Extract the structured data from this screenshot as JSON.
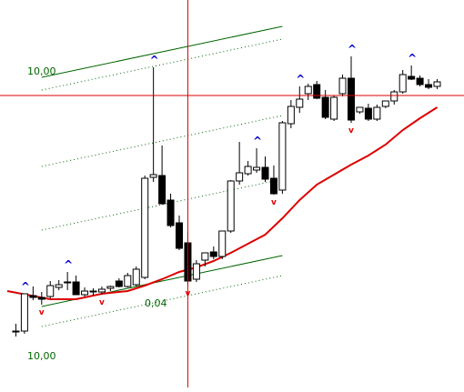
{
  "chart_data": {
    "type": "candlestick",
    "title": "",
    "xlabel": "",
    "ylabel": "",
    "up_color": "#ffffff",
    "down_color": "#000000",
    "candle_outline": "#000000",
    "ma_color": "#dd0000",
    "crosshair_color": "#dd0000",
    "channel_color": "#006600",
    "fractal_up_color": "#0000cc",
    "fractal_down_color": "#dd0000",
    "fractal_up_symbol": "^",
    "fractal_down_symbol": "v",
    "annotations": [
      {
        "text": "10,00"
      },
      {
        "text": "0,04"
      },
      {
        "text": "10,00"
      }
    ],
    "candles": [
      {
        "x": 1,
        "open": 31,
        "high": 39,
        "low": 25,
        "close": 31
      },
      {
        "x": 2,
        "open": 31,
        "high": 72,
        "low": 28,
        "close": 72
      },
      {
        "x": 3,
        "open": 70,
        "high": 80,
        "low": 65,
        "close": 68
      },
      {
        "x": 4,
        "open": 68,
        "high": 74,
        "low": 60,
        "close": 66
      },
      {
        "x": 5,
        "open": 69,
        "high": 86,
        "low": 67,
        "close": 81
      },
      {
        "x": 6,
        "open": 79,
        "high": 87,
        "low": 76,
        "close": 82
      },
      {
        "x": 7,
        "open": 85,
        "high": 96,
        "low": 76,
        "close": 84
      },
      {
        "x": 8,
        "open": 85,
        "high": 92,
        "low": 72,
        "close": 71
      },
      {
        "x": 9,
        "open": 71,
        "high": 79,
        "low": 69,
        "close": 75
      },
      {
        "x": 10,
        "open": 74,
        "high": 78,
        "low": 70,
        "close": 75
      },
      {
        "x": 11,
        "open": 74,
        "high": 80,
        "low": 71,
        "close": 77
      },
      {
        "x": 12,
        "open": 78,
        "high": 81,
        "low": 75,
        "close": 80
      },
      {
        "x": 13,
        "open": 86,
        "high": 89,
        "low": 79,
        "close": 80
      },
      {
        "x": 14,
        "open": 80,
        "high": 95,
        "low": 79,
        "close": 92
      },
      {
        "x": 15,
        "open": 82,
        "high": 102,
        "low": 80,
        "close": 99
      },
      {
        "x": 16,
        "open": 90,
        "high": 202,
        "low": 88,
        "close": 199
      },
      {
        "x": 17,
        "open": 200,
        "high": 321,
        "low": 195,
        "close": 203
      },
      {
        "x": 18,
        "open": 202,
        "high": 235,
        "low": 170,
        "close": 171
      },
      {
        "x": 19,
        "open": 175,
        "high": 182,
        "low": 145,
        "close": 147
      },
      {
        "x": 20,
        "open": 150,
        "high": 158,
        "low": 120,
        "close": 122
      },
      {
        "x": 21,
        "open": 128,
        "high": 140,
        "low": 81,
        "close": 86
      },
      {
        "x": 22,
        "open": 88,
        "high": 109,
        "low": 85,
        "close": 105
      },
      {
        "x": 23,
        "open": 109,
        "high": 117,
        "low": 102,
        "close": 117
      },
      {
        "x": 24,
        "open": 118,
        "high": 124,
        "low": 110,
        "close": 113
      },
      {
        "x": 25,
        "open": 113,
        "high": 141,
        "low": 110,
        "close": 141
      },
      {
        "x": 26,
        "open": 141,
        "high": 197,
        "low": 139,
        "close": 196
      },
      {
        "x": 27,
        "open": 196,
        "high": 239,
        "low": 192,
        "close": 205
      },
      {
        "x": 28,
        "open": 204,
        "high": 218,
        "low": 202,
        "close": 212
      },
      {
        "x": 29,
        "open": 208,
        "high": 232,
        "low": 205,
        "close": 211
      },
      {
        "x": 30,
        "open": 211,
        "high": 223,
        "low": 195,
        "close": 198
      },
      {
        "x": 31,
        "open": 199,
        "high": 213,
        "low": 181,
        "close": 182
      },
      {
        "x": 32,
        "open": 186,
        "high": 262,
        "low": 182,
        "close": 260
      },
      {
        "x": 33,
        "open": 259,
        "high": 285,
        "low": 254,
        "close": 278
      },
      {
        "x": 34,
        "open": 277,
        "high": 300,
        "low": 271,
        "close": 286
      },
      {
        "x": 35,
        "open": 292,
        "high": 303,
        "low": 285,
        "close": 300
      },
      {
        "x": 36,
        "open": 302,
        "high": 306,
        "low": 286,
        "close": 287
      },
      {
        "x": 37,
        "open": 288,
        "high": 296,
        "low": 264,
        "close": 266
      },
      {
        "x": 38,
        "open": 264,
        "high": 290,
        "low": 262,
        "close": 288
      },
      {
        "x": 39,
        "open": 292,
        "high": 313,
        "low": 289,
        "close": 309
      },
      {
        "x": 40,
        "open": 309,
        "high": 333,
        "low": 260,
        "close": 263
      },
      {
        "x": 41,
        "open": 272,
        "high": 277,
        "low": 270,
        "close": 277
      },
      {
        "x": 42,
        "open": 276,
        "high": 281,
        "low": 262,
        "close": 264
      },
      {
        "x": 43,
        "open": 264,
        "high": 280,
        "low": 262,
        "close": 277
      },
      {
        "x": 44,
        "open": 278,
        "high": 284,
        "low": 276,
        "close": 284
      },
      {
        "x": 45,
        "open": 284,
        "high": 296,
        "low": 280,
        "close": 294
      },
      {
        "x": 46,
        "open": 294,
        "high": 318,
        "low": 292,
        "close": 313
      },
      {
        "x": 47,
        "open": 311,
        "high": 323,
        "low": 307,
        "close": 308
      },
      {
        "x": 48,
        "open": 309,
        "high": 312,
        "low": 300,
        "close": 302
      },
      {
        "x": 49,
        "open": 302,
        "high": 308,
        "low": 297,
        "close": 299
      },
      {
        "x": 50,
        "open": 300,
        "high": 308,
        "low": 297,
        "close": 305
      }
    ],
    "moving_average": [
      {
        "x": 0,
        "y": 75
      },
      {
        "x": 5,
        "y": 66
      },
      {
        "x": 8,
        "y": 66
      },
      {
        "x": 11,
        "y": 72
      },
      {
        "x": 14,
        "y": 75
      },
      {
        "x": 16,
        "y": 81
      },
      {
        "x": 18,
        "y": 88
      },
      {
        "x": 20,
        "y": 96
      },
      {
        "x": 22,
        "y": 101
      },
      {
        "x": 24,
        "y": 108
      },
      {
        "x": 26,
        "y": 117
      },
      {
        "x": 28,
        "y": 127
      },
      {
        "x": 30,
        "y": 137
      },
      {
        "x": 32,
        "y": 155
      },
      {
        "x": 34,
        "y": 175
      },
      {
        "x": 36,
        "y": 192
      },
      {
        "x": 38,
        "y": 203
      },
      {
        "x": 40,
        "y": 214
      },
      {
        "x": 42,
        "y": 224
      },
      {
        "x": 44,
        "y": 236
      },
      {
        "x": 46,
        "y": 252
      },
      {
        "x": 48,
        "y": 265
      },
      {
        "x": 50,
        "y": 277
      }
    ],
    "channel": {
      "anchor_low": {
        "x": 5,
        "y": 60
      },
      "anchor_high": {
        "x": 31,
        "y": 112
      },
      "offset_high": 252,
      "dotted_offsets": [
        52,
        136,
        206,
        290
      ]
    },
    "fractals_up": [
      {
        "x": 2,
        "y": 72
      },
      {
        "x": 7,
        "y": 96
      },
      {
        "x": 17,
        "y": 321
      },
      {
        "x": 29,
        "y": 232
      },
      {
        "x": 34,
        "y": 300
      },
      {
        "x": 40,
        "y": 333
      },
      {
        "x": 47,
        "y": 323
      }
    ],
    "fractals_down": [
      {
        "x": 4,
        "y": 60
      },
      {
        "x": 11,
        "y": 71
      },
      {
        "x": 21,
        "y": 81
      },
      {
        "x": 31,
        "y": 181
      },
      {
        "x": 40,
        "y": 260
      }
    ],
    "crosshair": {
      "x": 21,
      "y": 290
    },
    "y_range": [
      0,
      380
    ],
    "x_range": [
      0,
      51
    ]
  }
}
